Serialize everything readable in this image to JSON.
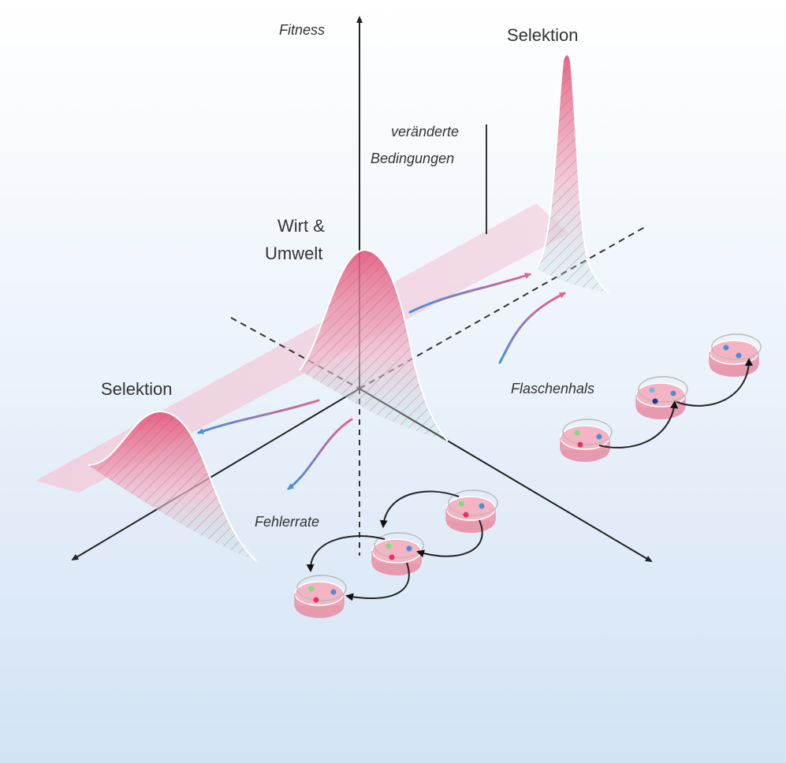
{
  "labels": {
    "fitness": "Fitness",
    "changed_conditions_line1": "veränderte",
    "changed_conditions_line2": "Bedingungen",
    "selection_right": "Selektion",
    "selection_left": "Selektion",
    "host_line1": "Wirt &",
    "host_line2": "Umwelt",
    "bottleneck": "Flaschenhals",
    "error_rate": "Fehlerrate"
  },
  "colors": {
    "background_top": "#ffffff",
    "background_bottom": "#d3e3f4",
    "peak_red": "#e2577a",
    "peak_cyan": "#a8e6e3",
    "band_pink": "#f3c6d6",
    "arrow_blue": "#4a8fd6",
    "arrow_pink": "#e2648e",
    "dish_fill": "#f5b4c4",
    "axis": "#222222"
  },
  "icons": {
    "dish": "petri-dish-icon",
    "arrow": "curved-arrow-icon"
  }
}
